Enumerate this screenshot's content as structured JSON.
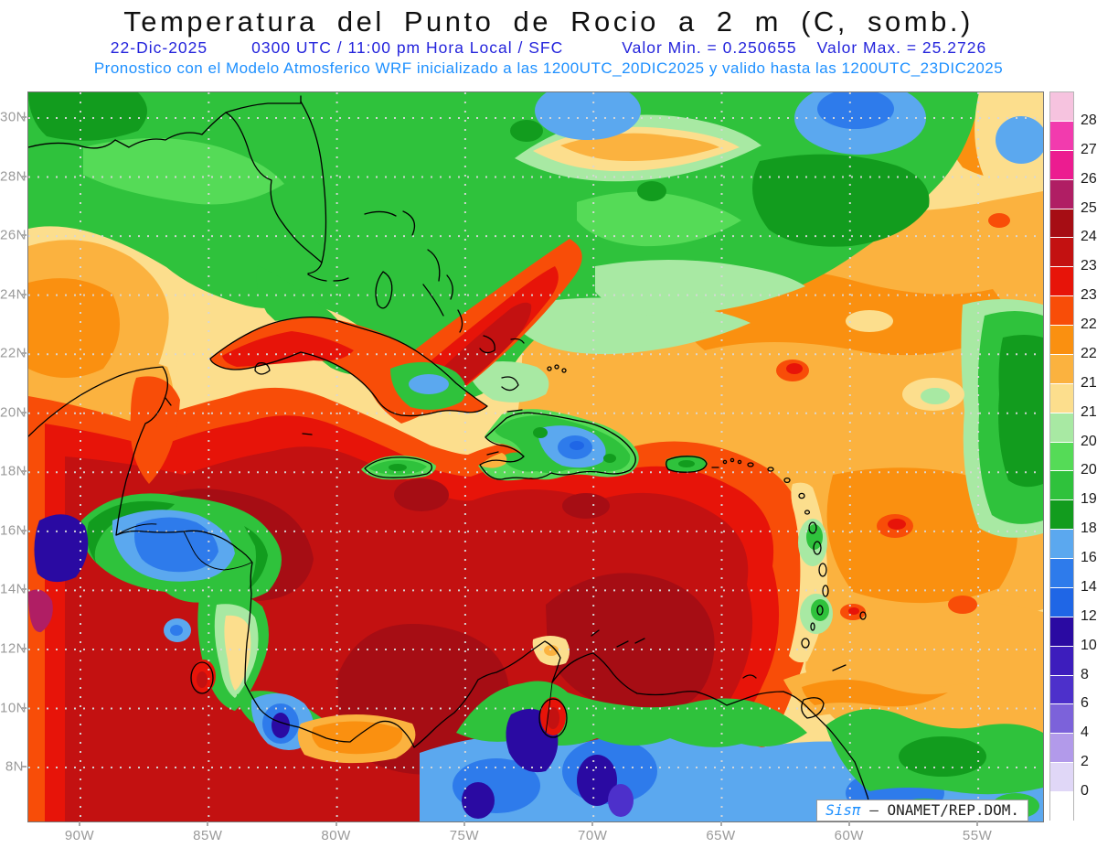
{
  "header": {
    "title": "Temperatura del Punto de Rocio a 2 m (C, somb.)",
    "line2": {
      "date": "22-Dic-2025",
      "time": "0300 UTC / 11:00 pm Hora Local / SFC",
      "valor_min": "Valor Min. = 0.250655",
      "valor_max": "Valor Max. = 25.2726"
    },
    "line3": "Pronostico con el Modelo Atmosferico WRF inicializado a las 1200UTC_20DIC2025 y valido hasta las  1200UTC_23DIC2025"
  },
  "map": {
    "lat_ticks": [
      "30N",
      "28N",
      "26N",
      "24N",
      "22N",
      "20N",
      "18N",
      "16N",
      "14N",
      "12N",
      "10N",
      "8N"
    ],
    "lon_ticks": [
      "90W",
      "85W",
      "80W",
      "75W",
      "70W",
      "65W",
      "60W",
      "55W"
    ],
    "watermark": {
      "brand": "Sisπ",
      "dash": " – ",
      "org": "ONAMET/REP.DOM."
    }
  },
  "colorbar": {
    "labels": [
      "28",
      "27",
      "26",
      "25",
      "24.5",
      "23.5",
      "23",
      "22.5",
      "22",
      "21.5",
      "21",
      "20.5",
      "20",
      "19",
      "18",
      "16",
      "14",
      "12",
      "10",
      "8",
      "6",
      "4",
      "2",
      "0"
    ],
    "colors": [
      "#F6C3DF",
      "#F23BAE",
      "#EC1C90",
      "#B01E64",
      "#A60D14",
      "#C31111",
      "#E71409",
      "#F84D08",
      "#FA9010",
      "#FBB23F",
      "#FCDE8D",
      "#A8E9A3",
      "#55DB57",
      "#2FC23C",
      "#129C1E",
      "#5BA8EF",
      "#2E7BEB",
      "#1F66E6",
      "#2A0AA2",
      "#3D1DBD",
      "#4D30CB",
      "#7C62DA",
      "#B29AEA",
      "#E0D7F7",
      "#FFFFFF"
    ]
  },
  "colors": {
    "subtitle1": "#2424DC",
    "subtitle2": "#1E90FF",
    "axis_label": "#9A9A9A",
    "title_text": "#101010"
  },
  "chart_data": {
    "type": "heatmap",
    "title": "Temperatura del Punto de Rocio a 2 m (C, somb.)",
    "variable": "dew point temperature at 2 m (shaded)",
    "units": "C",
    "value_min": 0.250655,
    "value_max": 25.2726,
    "model_run": "1200UTC_20DIC2025",
    "valid_until": "1200UTC_23DIC2025",
    "lat_range": [
      "8N",
      "30N"
    ],
    "lon_range": [
      "90W",
      "55W"
    ],
    "contour_levels": [
      0,
      2,
      4,
      6,
      8,
      10,
      12,
      14,
      16,
      18,
      19,
      20,
      20.5,
      21,
      21.5,
      22,
      22.5,
      23,
      23.5,
      24.5,
      25,
      26,
      27,
      28
    ],
    "legend_position": "right"
  }
}
